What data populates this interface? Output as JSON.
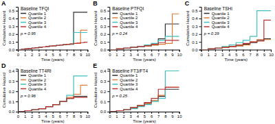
{
  "chart_data": [
    {
      "type": "step",
      "title": "A",
      "subtitle": "Baseline TFQI",
      "annotations": [
        "p = 0.95"
      ],
      "xlabel": "Time (years)",
      "ylabel": "Cumulative Hazard",
      "xlim": [
        0,
        10
      ],
      "xticks": [
        0,
        1,
        2,
        3,
        4,
        5,
        6,
        7,
        8,
        9,
        10
      ],
      "ylim": [
        0,
        0.55
      ],
      "yticks": [
        {
          "value": 0,
          "label": "0.0"
        },
        0.1,
        0.2,
        0.3,
        0.4,
        0.5
      ],
      "legend": "upper left",
      "series": [
        {
          "name": "Quartile 1",
          "color": "#2d2d2d",
          "x": [
            0,
            0.5,
            1,
            1.5,
            2,
            2.5,
            3,
            3.5,
            4,
            4.5,
            5,
            5.5,
            6,
            6.5,
            7,
            7.5,
            8,
            10
          ],
          "values": [
            0,
            0.005,
            0.01,
            0.015,
            0.02,
            0.025,
            0.03,
            0.035,
            0.04,
            0.045,
            0.05,
            0.055,
            0.06,
            0.065,
            0.07,
            0.07,
            0.48,
            0.48
          ]
        },
        {
          "name": "Quartile 2",
          "color": "#e07b39",
          "x": [
            0,
            0.5,
            1,
            1.5,
            2,
            2.5,
            3,
            3.5,
            4,
            4.5,
            5,
            5.5,
            6,
            6.5,
            7,
            7.5,
            8,
            8.5,
            9,
            10
          ],
          "values": [
            0,
            0.005,
            0.01,
            0.015,
            0.02,
            0.025,
            0.03,
            0.035,
            0.04,
            0.045,
            0.05,
            0.055,
            0.06,
            0.065,
            0.07,
            0.075,
            0.08,
            0.08,
            0.25,
            0.25
          ]
        },
        {
          "name": "Quartile 3",
          "color": "#3ebebe",
          "x": [
            0,
            0.5,
            1,
            1.5,
            2,
            2.5,
            3,
            3.5,
            4,
            4.5,
            5,
            5.5,
            6,
            6.5,
            7,
            7.5,
            8,
            10
          ],
          "values": [
            0,
            0.005,
            0.01,
            0.015,
            0.02,
            0.025,
            0.03,
            0.035,
            0.04,
            0.045,
            0.05,
            0.055,
            0.06,
            0.065,
            0.07,
            0.075,
            0.22,
            0.22
          ]
        },
        {
          "name": "Quartile 4",
          "color": "#b83232",
          "x": [
            0,
            0.5,
            1,
            1.5,
            2,
            2.5,
            3,
            3.5,
            4,
            4.5,
            5,
            5.5,
            6,
            6.5,
            7,
            7.5,
            8,
            8.5,
            9,
            9.5,
            10
          ],
          "values": [
            0,
            0.005,
            0.01,
            0.015,
            0.02,
            0.025,
            0.03,
            0.035,
            0.04,
            0.045,
            0.05,
            0.055,
            0.06,
            0.065,
            0.07,
            0.075,
            0.08,
            0.085,
            0.09,
            0.095,
            0.095
          ]
        }
      ]
    },
    {
      "type": "step",
      "title": "B",
      "subtitle": "Baseline PTFQI",
      "annotations": [
        "p = 0.24"
      ],
      "xlabel": "Time (years)",
      "ylabel": "Cumulative Hazard",
      "xlim": [
        0,
        10
      ],
      "xticks": [
        0,
        1,
        2,
        3,
        4,
        5,
        6,
        7,
        8,
        9,
        10
      ],
      "ylim": [
        0,
        0.55
      ],
      "yticks": [
        {
          "value": 0,
          "label": "0.0"
        },
        0.1,
        0.2,
        0.3,
        0.4,
        0.5
      ],
      "legend": "upper left",
      "series": [
        {
          "name": "Quartile 1",
          "color": "#2d2d2d",
          "x": [
            0,
            1,
            2,
            3,
            4,
            5,
            6,
            7,
            7.5,
            8,
            10
          ],
          "values": [
            0,
            0.01,
            0.02,
            0.03,
            0.04,
            0.05,
            0.06,
            0.14,
            0.14,
            0.33,
            0.33
          ]
        },
        {
          "name": "Quartile 2",
          "color": "#e07b39",
          "x": [
            0,
            1,
            2,
            3,
            4,
            5,
            6,
            7,
            8,
            8.5,
            9,
            10
          ],
          "values": [
            0,
            0.01,
            0.02,
            0.03,
            0.04,
            0.05,
            0.06,
            0.07,
            0.08,
            0.08,
            0.46,
            0.46
          ]
        },
        {
          "name": "Quartile 3",
          "color": "#3ebebe",
          "x": [
            0,
            1,
            2,
            3,
            4,
            5,
            6,
            7,
            8,
            10
          ],
          "values": [
            0,
            0.01,
            0.02,
            0.03,
            0.04,
            0.06,
            0.08,
            0.12,
            0.17,
            0.17
          ]
        },
        {
          "name": "Quartile 4",
          "color": "#b83232",
          "x": [
            0,
            1,
            2,
            3,
            4,
            5,
            6,
            7,
            8,
            10
          ],
          "values": [
            0,
            0.01,
            0.02,
            0.03,
            0.04,
            0.05,
            0.07,
            0.09,
            0.12,
            0.12
          ]
        }
      ]
    },
    {
      "type": "step",
      "title": "C",
      "subtitle": "Baseline TSHI",
      "annotations": [
        "p = 0.39"
      ],
      "xlabel": "Time (years)",
      "ylabel": "Cumulative Hazard",
      "xlim": [
        0,
        10
      ],
      "xticks": [
        0,
        1,
        2,
        3,
        4,
        5,
        6,
        7,
        8,
        9,
        10
      ],
      "ylim": [
        0,
        0.55
      ],
      "yticks": [
        {
          "value": 0,
          "label": "0.0"
        },
        0.1,
        0.2,
        0.3,
        0.4,
        0.5
      ],
      "legend": "upper left",
      "series": [
        {
          "name": "Quartile 1",
          "color": "#2d2d2d",
          "x": [
            0,
            1,
            2,
            3,
            4,
            5,
            6,
            7,
            8,
            9,
            10
          ],
          "values": [
            0,
            0.01,
            0.02,
            0.03,
            0.04,
            0.05,
            0.07,
            0.09,
            0.12,
            0.14,
            0.14
          ]
        },
        {
          "name": "Quartile 2",
          "color": "#e07b39",
          "x": [
            0,
            1,
            2,
            3,
            4,
            5,
            6,
            7,
            8,
            9,
            10
          ],
          "values": [
            0,
            0.01,
            0.02,
            0.03,
            0.04,
            0.05,
            0.06,
            0.1,
            0.13,
            0.13,
            0.13
          ]
        },
        {
          "name": "Quartile 3",
          "color": "#3ebebe",
          "x": [
            0,
            1,
            2,
            3,
            4,
            5,
            6,
            7,
            8,
            10
          ],
          "values": [
            0,
            0.01,
            0.02,
            0.04,
            0.06,
            0.09,
            0.12,
            0.17,
            0.5,
            0.5
          ]
        },
        {
          "name": "Quartile 4",
          "color": "#b83232",
          "x": [
            0,
            1,
            2,
            3,
            4,
            5,
            6,
            7,
            8,
            9,
            10
          ],
          "values": [
            0,
            0.01,
            0.02,
            0.03,
            0.04,
            0.06,
            0.08,
            0.1,
            0.11,
            0.38,
            0.38
          ]
        }
      ]
    },
    {
      "type": "step",
      "title": "D",
      "subtitle": "Baseline TT4RI",
      "annotations": [
        "p = 0.96"
      ],
      "xlabel": "Time (years)",
      "ylabel": "Cumulative Hazard",
      "xlim": [
        0,
        10
      ],
      "xticks": [
        0,
        1,
        2,
        3,
        4,
        5,
        6,
        7,
        8,
        9,
        10
      ],
      "ylim": [
        0,
        0.42
      ],
      "yticks": [
        {
          "value": 0,
          "label": "0.0"
        },
        0.1,
        0.2,
        0.3,
        0.4
      ],
      "legend": "upper left",
      "series": [
        {
          "name": "Quartile 1",
          "color": "#2d2d2d",
          "x": [
            0,
            1,
            2,
            3,
            4,
            5,
            6,
            7,
            8,
            9,
            10
          ],
          "values": [
            0,
            0.01,
            0.02,
            0.03,
            0.05,
            0.07,
            0.1,
            0.13,
            0.15,
            0.15,
            0.15
          ]
        },
        {
          "name": "Quartile 2",
          "color": "#e07b39",
          "x": [
            0,
            1,
            2,
            3,
            4,
            5,
            6,
            7,
            8,
            9,
            10
          ],
          "values": [
            0,
            0.01,
            0.02,
            0.03,
            0.05,
            0.07,
            0.1,
            0.14,
            0.17,
            0.26,
            0.26
          ]
        },
        {
          "name": "Quartile 3",
          "color": "#3ebebe",
          "x": [
            0,
            1,
            2,
            3,
            4,
            5,
            6,
            7,
            8,
            10
          ],
          "values": [
            0,
            0.01,
            0.02,
            0.03,
            0.05,
            0.07,
            0.1,
            0.16,
            0.35,
            0.35
          ]
        },
        {
          "name": "Quartile 4",
          "color": "#b83232",
          "x": [
            0,
            1,
            2,
            3,
            4,
            5,
            6,
            7,
            8,
            9,
            10
          ],
          "values": [
            0,
            0.01,
            0.02,
            0.03,
            0.05,
            0.07,
            0.1,
            0.13,
            0.14,
            0.14,
            0.14
          ]
        }
      ]
    },
    {
      "type": "step",
      "title": "E",
      "subtitle": "Baseline FT3/FT4",
      "annotations": [
        "p = 0.25"
      ],
      "xlabel": "Time (years)",
      "ylabel": "Cumulative Hazard",
      "xlim": [
        0,
        10
      ],
      "xticks": [
        0,
        1,
        2,
        3,
        4,
        5,
        6,
        7,
        8,
        9,
        10
      ],
      "ylim": [
        0,
        0.42
      ],
      "yticks": [
        {
          "value": 0,
          "label": "0.0"
        },
        0.1,
        0.2,
        0.3,
        0.4
      ],
      "legend": "upper left",
      "series": [
        {
          "name": "Quartile 1",
          "color": "#2d2d2d",
          "x": [
            0,
            1,
            2,
            3,
            4,
            5,
            6,
            7,
            8,
            9,
            10
          ],
          "values": [
            0,
            0.01,
            0.02,
            0.04,
            0.06,
            0.08,
            0.11,
            0.15,
            0.22,
            0.22,
            0.22
          ]
        },
        {
          "name": "Quartile 2",
          "color": "#e07b39",
          "x": [
            0,
            1,
            2,
            3,
            4,
            5,
            6,
            7,
            8,
            9,
            10
          ],
          "values": [
            0,
            0.01,
            0.02,
            0.04,
            0.06,
            0.08,
            0.11,
            0.16,
            0.24,
            0.24,
            0.24
          ]
        },
        {
          "name": "Quartile 3",
          "color": "#3ebebe",
          "x": [
            0,
            1,
            2,
            3,
            4,
            5,
            6,
            7,
            8,
            10
          ],
          "values": [
            0,
            0.01,
            0.02,
            0.03,
            0.05,
            0.07,
            0.1,
            0.13,
            0.4,
            0.4
          ]
        },
        {
          "name": "Quartile 4",
          "color": "#b83232",
          "x": [
            0,
            1,
            2,
            3,
            4,
            5,
            6,
            7,
            8,
            9,
            10
          ],
          "values": [
            0,
            0.01,
            0.02,
            0.04,
            0.06,
            0.09,
            0.13,
            0.22,
            0.24,
            0.24,
            0.24
          ]
        }
      ]
    }
  ]
}
